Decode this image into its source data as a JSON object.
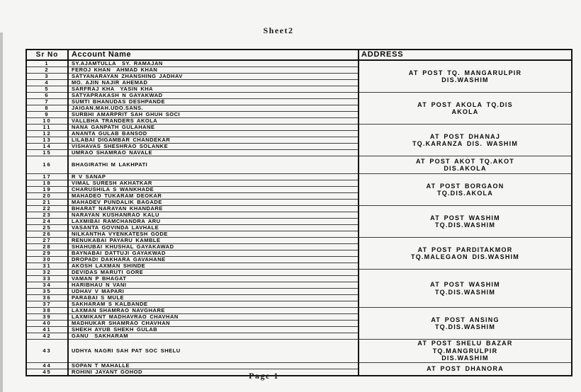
{
  "page": {
    "sheet_label": "Sheet2",
    "page_label": "Page 1"
  },
  "table": {
    "headers": {
      "sr_no": "Sr No",
      "account_name": "Account Name",
      "address": "ADDRESS"
    },
    "rows": [
      {
        "sr": "1",
        "name": "SY.AJAMTULLA  SY. RAMAJAN"
      },
      {
        "sr": "2",
        "name": "FEROJ KHAN  AHMAD KHAN"
      },
      {
        "sr": "3",
        "name": "SATYANARAYAN ZHANSHING JADHAV"
      },
      {
        "sr": "4",
        "name": "MO. AJIN NAJIR AHEMAD"
      },
      {
        "sr": "5",
        "name": "SARFRAJ KHA  YASIN KHA"
      },
      {
        "sr": "6",
        "name": "SATYAPRAKASH N GAYAKWAD"
      },
      {
        "sr": "7",
        "name": "SUMTI BHANUDAS DESHPANDE"
      },
      {
        "sr": "8",
        "name": "JAIGAN.MAH.UDO.SANS."
      },
      {
        "sr": "9",
        "name": "SURBHI AMARPRIT SAH GHUH SOCI"
      },
      {
        "sr": "10",
        "name": "VALLBHA TRANDERS AKOLA"
      },
      {
        "sr": "11",
        "name": "NANA GANPATH GULAHANE"
      },
      {
        "sr": "12",
        "name": "ANANTA GULAB BANSOD"
      },
      {
        "sr": "13",
        "name": "LILABAI DIGAMBAR CHANDEKAR"
      },
      {
        "sr": "14",
        "name": "VISHAVAS SHESHRAO SOLANKE"
      },
      {
        "sr": "15",
        "name": "UMRAO SHAMRAO NAVALE"
      },
      {
        "sr": "16",
        "name": "BHAGIRATHI M LAKHPATI"
      },
      {
        "sr": "17",
        "name": "R V SANAP"
      },
      {
        "sr": "18",
        "name": "VIMAL SURESH AKHATKAR"
      },
      {
        "sr": "19",
        "name": "CHARUSHILA S WANKHADE"
      },
      {
        "sr": "20",
        "name": "MAHADEO TUKARAM DEOKAR"
      },
      {
        "sr": "21",
        "name": "MAHADEV PUNDALIK BAGADE"
      },
      {
        "sr": "22",
        "name": "BHARAT NARAYAN KHANDARE"
      },
      {
        "sr": "23",
        "name": "NARAYAN KUSHANRAO KALU"
      },
      {
        "sr": "24",
        "name": "LAXMIBAI RAMCHANDRA ARU"
      },
      {
        "sr": "25",
        "name": "VASANTA GOVINDA LAVHALE"
      },
      {
        "sr": "26",
        "name": "NILKANTHA VYENKATESH GODE"
      },
      {
        "sr": "27",
        "name": "RENUKABAI PAYARU KAMBLE"
      },
      {
        "sr": "28",
        "name": "SHAHUBAI KHUSHAL GAYAKAWAD"
      },
      {
        "sr": "29",
        "name": "BAYNABAI DATTUJI GAYAKWAD"
      },
      {
        "sr": "30",
        "name": "DROPADI DAKHARA GAVAHANE"
      },
      {
        "sr": "31",
        "name": "AKOSH LAXMAN SHINDE"
      },
      {
        "sr": "32",
        "name": "DEVIDAS MARUTI GORE"
      },
      {
        "sr": "33",
        "name": "VAMAN P BHAGAT"
      },
      {
        "sr": "34",
        "name": "HARIBHAU N VANI"
      },
      {
        "sr": "35",
        "name": "UDHAV V MAPARI"
      },
      {
        "sr": "36",
        "name": "PARABAI S MULE"
      },
      {
        "sr": "37",
        "name": "SAKHARAM S KALBANDE"
      },
      {
        "sr": "38",
        "name": "LAXMAN SHAMRAO NAVGHARE"
      },
      {
        "sr": "39",
        "name": "LAXMIKANT MADHAVRAO CHAVHAN"
      },
      {
        "sr": "40",
        "name": "MADHUKAR SHAMRAO CHAVHAN"
      },
      {
        "sr": "41",
        "name": "SHEKH AYUB SHEKH GULAB"
      },
      {
        "sr": "42",
        "name": "GANU  SAKHARAM"
      },
      {
        "sr": "43",
        "name": "UDHYA NAGRI SAH PAT SOC SHELU"
      },
      {
        "sr": "44",
        "name": "SOPAN T MAHALLE"
      },
      {
        "sr": "45",
        "name": "ROHINI JAYANT GOHOD"
      }
    ],
    "tall_rows": [
      16,
      43
    ],
    "address_groups": [
      {
        "start": 1,
        "span": 5,
        "lines": [
          "AT POST TQ. MANGARULPIR",
          "DIS.WASHIM"
        ]
      },
      {
        "start": 6,
        "span": 5,
        "lines": [
          "AT POST AKOLA TQ.DIS",
          "AKOLA"
        ]
      },
      {
        "start": 11,
        "span": 5,
        "lines": [
          "AT POST DHANAJ",
          "TQ.KARANZA DIS. WASHIM"
        ]
      },
      {
        "start": 16,
        "span": 1,
        "lines": [
          "AT POST AKOT TQ.AKOT",
          "DIS.AKOLA"
        ]
      },
      {
        "start": 17,
        "span": 5,
        "lines": [
          "AT POST BORGAON",
          "TQ.DIS.AKOLA"
        ]
      },
      {
        "start": 22,
        "span": 5,
        "lines": [
          "AT POST WASHIM",
          "TQ.DIS.WASHIM"
        ]
      },
      {
        "start": 27,
        "span": 5,
        "lines": [
          "AT POST PARDITAKMOR",
          "TQ.MALEGAON DIS.WASHIM"
        ]
      },
      {
        "start": 32,
        "span": 6,
        "lines": [
          "AT POST WASHIM",
          "TQ.DIS.WASHIM"
        ]
      },
      {
        "start": 38,
        "span": 5,
        "lines": [
          "AT POST ANSING",
          "TQ.DIS.WASHIM"
        ]
      },
      {
        "start": 43,
        "span": 1,
        "lines": [
          "AT POST SHELU BAZAR",
          "TQ.MANGRULPIR",
          "DIS.WASHIM"
        ]
      },
      {
        "start": 44,
        "span": 2,
        "lines": [
          "AT POST DHANORA"
        ]
      }
    ]
  }
}
